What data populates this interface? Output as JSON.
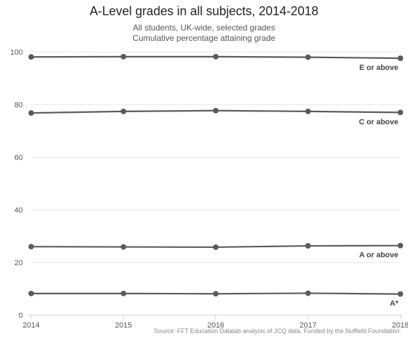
{
  "chart_data": {
    "type": "line",
    "title": "A-Level grades in all subjects, 2014-2018",
    "subtitle_lines": [
      "All students, UK-wide, selected grades",
      "Cumulative percentage attaining grade"
    ],
    "x": [
      2014,
      2015,
      2016,
      2017,
      2018
    ],
    "xlabel": "",
    "ylabel": "",
    "ylim": [
      0,
      100
    ],
    "yticks": [
      0,
      20,
      40,
      60,
      80,
      100
    ],
    "grid": true,
    "series": [
      {
        "name": "E or above",
        "values": [
          98.1,
          98.2,
          98.2,
          98.0,
          97.6
        ]
      },
      {
        "name": "C or above",
        "values": [
          76.8,
          77.4,
          77.7,
          77.4,
          77.0
        ]
      },
      {
        "name": "A or above",
        "values": [
          26.0,
          25.9,
          25.8,
          26.3,
          26.4
        ]
      },
      {
        "name": "A*",
        "values": [
          8.2,
          8.2,
          8.1,
          8.3,
          8.0
        ]
      }
    ],
    "line_color": "#5a5a5a",
    "source": "Source: FFT Education Datalab analysis of JCQ data. Funded by the Nuffield Foundation."
  }
}
